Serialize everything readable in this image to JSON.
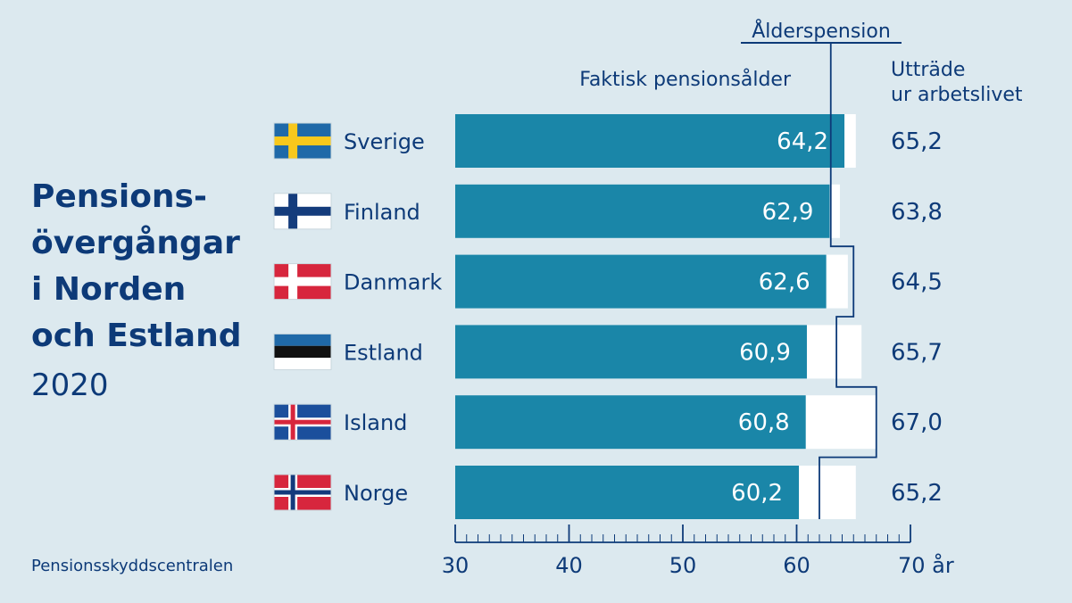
{
  "title_lines": [
    "Pensions-",
    "övergångar",
    "i Norden",
    "och Estland"
  ],
  "year": "2020",
  "footer": "Pensionsskyddscentralen",
  "colors": {
    "background": "#dce9ef",
    "bar": "#1a86a8",
    "text": "#0d3a78",
    "remaining": "#ffffff"
  },
  "chart_data": {
    "type": "bar",
    "orientation": "horizontal",
    "title": "",
    "headers": {
      "actual": "Faktisk pensionsålder",
      "exit": "Utträde\nur arbetslivet",
      "pension_age": "Ålderspension"
    },
    "categories": [
      "Sverige",
      "Finland",
      "Danmark",
      "Estland",
      "Island",
      "Norge"
    ],
    "flags": [
      "sweden-flag",
      "finland-flag",
      "denmark-flag",
      "estonia-flag",
      "iceland-flag",
      "norway-flag"
    ],
    "series": [
      {
        "name": "Faktisk pensionsålder",
        "values": [
          64.2,
          62.9,
          62.6,
          60.9,
          60.8,
          60.2
        ],
        "labels": [
          "64,2",
          "62,9",
          "62,6",
          "60,9",
          "60,8",
          "60,2"
        ]
      },
      {
        "name": "Utträde ur arbetslivet",
        "values": [
          65.2,
          63.8,
          64.5,
          65.7,
          67.0,
          65.2
        ],
        "labels": [
          "65,2",
          "63,8",
          "64,5",
          "65,7",
          "67,0",
          "65,2"
        ]
      }
    ],
    "pension_age_steps": [
      {
        "category": "Sverige",
        "value": 63
      },
      {
        "category": "Finland",
        "value": 63
      },
      {
        "category": "Danmark",
        "value": 65
      },
      {
        "category": "Estland",
        "value": 63.5
      },
      {
        "category": "Island",
        "value": 67
      },
      {
        "category": "Norge",
        "value": 62
      }
    ],
    "xlim": [
      30,
      70
    ],
    "x_ticks": [
      30,
      40,
      50,
      60,
      70
    ],
    "x_tick_labels": [
      "30",
      "40",
      "50",
      "60",
      "70 år"
    ],
    "minor_tick_step": 1,
    "grid": false,
    "legend": "none"
  }
}
